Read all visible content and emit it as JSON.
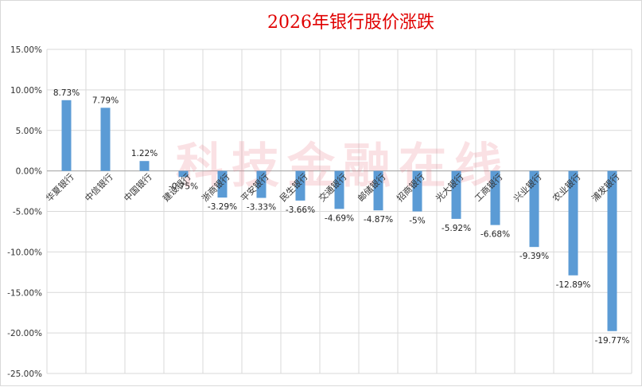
{
  "chart_data": {
    "type": "bar",
    "title": "2026年银行股价涨跌",
    "watermark": "科技金融在线",
    "xlabel": "",
    "ylabel": "",
    "ylim": [
      -0.25,
      0.15
    ],
    "yticks": [
      0.15,
      0.1,
      0.05,
      0.0,
      -0.05,
      -0.1,
      -0.15,
      -0.2,
      -0.25
    ],
    "ytick_labels": [
      "15.00%",
      "10.00%",
      "5.00%",
      "0.00%",
      "-5.00%",
      "-10.00%",
      "-15.00%",
      "-20.00%",
      "-25.00%"
    ],
    "grid": true,
    "categories": [
      "华夏银行",
      "中信银行",
      "中国银行",
      "建设银行",
      "浙商银行",
      "平安银行",
      "民生银行",
      "交通银行",
      "邮储银行",
      "招商银行",
      "光大银行",
      "工商银行",
      "兴业银行",
      "农业银行",
      "浦发银行"
    ],
    "values": [
      0.0873,
      0.0779,
      0.0122,
      -0.0075,
      -0.0329,
      -0.0333,
      -0.0366,
      -0.0469,
      -0.0487,
      -0.05,
      -0.0592,
      -0.0668,
      -0.0939,
      -0.1289,
      -0.1977
    ],
    "value_labels": [
      "8.73%",
      "7.79%",
      "1.22%",
      "-0.75%",
      "-3.29%",
      "-3.33%",
      "-3.66%",
      "-4.69%",
      "-4.87%",
      "-5%",
      "-5.92%",
      "-6.68%",
      "-9.39%",
      "-12.89%",
      "-19.77%"
    ],
    "colors": {
      "bar": "#5b9bd5",
      "title": "#e00000",
      "grid": "#d9d9d9",
      "axis": "#a6a6a6",
      "watermark": "rgba(230,120,130,0.22)"
    }
  }
}
